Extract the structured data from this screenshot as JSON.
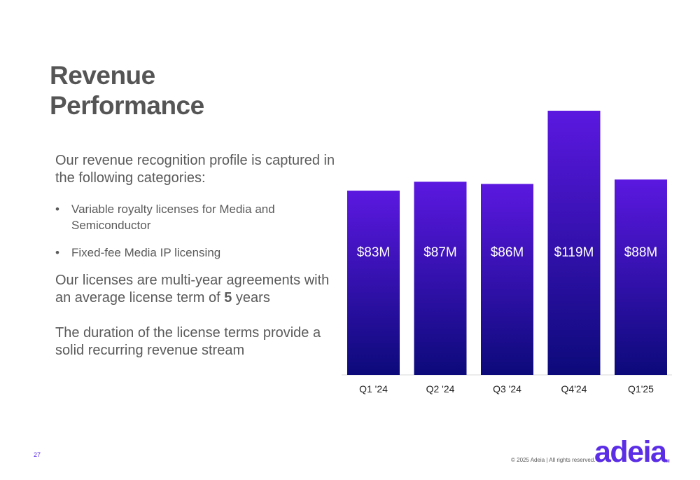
{
  "slide": {
    "title_line1": "Revenue",
    "title_line2": "Performance",
    "intro": "Our revenue recognition profile is captured in the following categories:",
    "bullet_symbol": "•",
    "bullets": [
      "Variable royalty licenses for Media and Semiconductor",
      "Fixed-fee Media IP licensing"
    ],
    "para2_prefix": "Our licenses are multi-year agreements with an average license term of ",
    "para2_bold": "5",
    "para2_suffix": " years",
    "para3": "The duration of the license terms provide a solid recurring revenue stream",
    "page_number": "27",
    "copyright": "© 2025 Adeia | All rights reserved.",
    "logo": "adeia",
    "trademark": "TM"
  },
  "colors": {
    "bar_top": "#5b18e0",
    "bar_bottom": "#0c0a7a",
    "label_text": "#ffffff",
    "axis_text": "#222222",
    "accent": "#5b2ee6"
  },
  "chart_data": {
    "type": "bar",
    "categories": [
      "Q1 '24",
      "Q2 '24",
      "Q3 '24",
      "Q4'24",
      "Q1'25"
    ],
    "values": [
      83,
      87,
      86,
      119,
      88
    ],
    "data_labels": [
      "$83M",
      "$87M",
      "$86M",
      "$119M",
      "$88M"
    ],
    "unit": "$M",
    "title": "",
    "xlabel": "",
    "ylabel": "",
    "ylim": [
      0,
      119
    ],
    "grid": false,
    "legend": "none"
  }
}
